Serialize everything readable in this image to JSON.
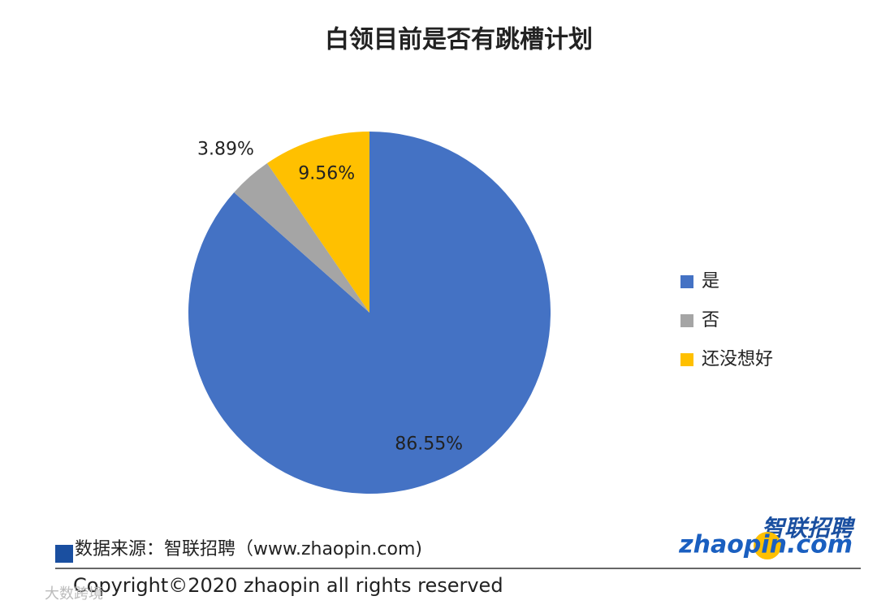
{
  "chart_data": {
    "type": "pie",
    "title": "白领目前是否有跳槽计划",
    "categories": [
      "是",
      "否",
      "还没想好"
    ],
    "values": [
      86.55,
      3.89,
      9.56
    ],
    "value_labels": [
      "86.55%",
      "3.89%",
      "9.56%"
    ],
    "colors": [
      "#4472c4",
      "#a5a5a5",
      "#ffc000"
    ],
    "legend": "right"
  },
  "source": "数据来源：智联招聘（www.zhaopin.com)",
  "copyright": "Copyright©2020 zhaopin all rights reserved",
  "logo": {
    "chinese": "智联招聘",
    "english": "zhaopin.com"
  },
  "watermark": "大数跨境"
}
